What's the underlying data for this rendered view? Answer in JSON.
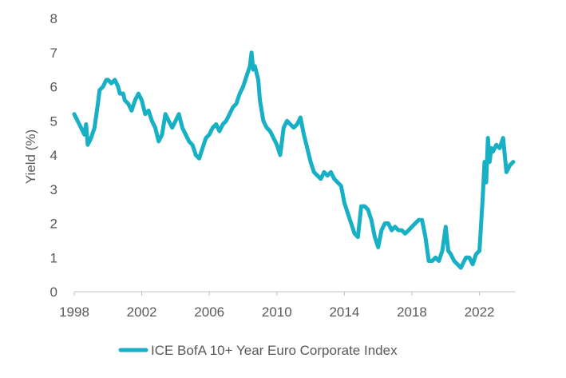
{
  "chart_data": {
    "type": "line",
    "title": "",
    "xlabel": "",
    "ylabel": "Yield (%)",
    "xlim": [
      1998,
      2024.1
    ],
    "ylim": [
      0,
      8
    ],
    "x_ticks": [
      "1998",
      "2002",
      "2006",
      "2010",
      "2014",
      "2018",
      "2022"
    ],
    "y_ticks": [
      "0",
      "1",
      "2",
      "3",
      "4",
      "5",
      "6",
      "7",
      "8"
    ],
    "grid": false,
    "legend_position": "bottom",
    "series": [
      {
        "name": "ICE BofA 10+ Year Euro Corporate Index",
        "color": "#17b0c4",
        "x": [
          1998.0,
          1998.2,
          1998.4,
          1998.6,
          1998.7,
          1998.8,
          1999.0,
          1999.2,
          1999.4,
          1999.5,
          1999.7,
          1999.9,
          2000.0,
          2000.2,
          2000.4,
          2000.6,
          2000.7,
          2000.9,
          2001.0,
          2001.2,
          2001.4,
          2001.6,
          2001.8,
          2002.0,
          2002.2,
          2002.4,
          2002.6,
          2002.8,
          2003.0,
          2003.2,
          2003.4,
          2003.6,
          2003.8,
          2004.0,
          2004.2,
          2004.4,
          2004.6,
          2004.8,
          2005.0,
          2005.2,
          2005.4,
          2005.6,
          2005.8,
          2006.0,
          2006.2,
          2006.4,
          2006.6,
          2006.8,
          2007.0,
          2007.2,
          2007.4,
          2007.6,
          2007.8,
          2008.0,
          2008.2,
          2008.4,
          2008.5,
          2008.6,
          2008.7,
          2008.8,
          2008.9,
          2009.0,
          2009.2,
          2009.4,
          2009.6,
          2009.8,
          2010.0,
          2010.2,
          2010.4,
          2010.6,
          2010.8,
          2011.0,
          2011.2,
          2011.4,
          2011.6,
          2011.8,
          2012.0,
          2012.2,
          2012.4,
          2012.6,
          2012.8,
          2013.0,
          2013.2,
          2013.4,
          2013.6,
          2013.8,
          2014.0,
          2014.2,
          2014.4,
          2014.6,
          2014.8,
          2015.0,
          2015.2,
          2015.4,
          2015.6,
          2015.8,
          2016.0,
          2016.2,
          2016.4,
          2016.6,
          2016.8,
          2017.0,
          2017.2,
          2017.4,
          2017.6,
          2017.8,
          2018.0,
          2018.2,
          2018.4,
          2018.6,
          2018.8,
          2019.0,
          2019.2,
          2019.4,
          2019.6,
          2019.8,
          2020.0,
          2020.15,
          2020.3,
          2020.5,
          2020.7,
          2020.9,
          2021.0,
          2021.2,
          2021.4,
          2021.6,
          2021.8,
          2022.0,
          2022.1,
          2022.2,
          2022.3,
          2022.4,
          2022.5,
          2022.6,
          2022.7,
          2022.8,
          2023.0,
          2023.2,
          2023.4,
          2023.6,
          2023.8,
          2024.0
        ],
        "values": [
          5.2,
          5.0,
          4.8,
          4.6,
          4.9,
          4.3,
          4.5,
          4.8,
          5.5,
          5.9,
          6.0,
          6.2,
          6.2,
          6.1,
          6.2,
          6.0,
          5.8,
          5.8,
          5.6,
          5.5,
          5.3,
          5.6,
          5.8,
          5.6,
          5.2,
          5.3,
          5.0,
          4.8,
          4.4,
          4.6,
          5.2,
          5.0,
          4.8,
          5.0,
          5.2,
          4.8,
          4.6,
          4.4,
          4.3,
          4.0,
          3.9,
          4.2,
          4.5,
          4.6,
          4.8,
          4.9,
          4.7,
          4.9,
          5.0,
          5.2,
          5.4,
          5.5,
          5.8,
          6.0,
          6.3,
          6.6,
          7.0,
          6.5,
          6.6,
          6.4,
          6.2,
          5.6,
          5.0,
          4.8,
          4.7,
          4.5,
          4.3,
          4.0,
          4.8,
          5.0,
          4.9,
          4.8,
          4.9,
          5.1,
          4.6,
          4.2,
          3.8,
          3.5,
          3.4,
          3.3,
          3.5,
          3.4,
          3.5,
          3.3,
          3.2,
          3.1,
          2.6,
          2.3,
          2.0,
          1.7,
          1.6,
          2.5,
          2.5,
          2.4,
          2.1,
          1.6,
          1.3,
          1.8,
          2.0,
          2.0,
          1.8,
          1.9,
          1.8,
          1.8,
          1.7,
          1.8,
          1.9,
          2.0,
          2.1,
          2.1,
          1.6,
          0.9,
          0.9,
          1.0,
          0.9,
          1.2,
          1.9,
          1.2,
          1.1,
          0.9,
          0.8,
          0.7,
          0.8,
          1.0,
          1.0,
          0.8,
          1.1,
          1.2,
          2.0,
          2.8,
          3.8,
          3.2,
          4.5,
          3.8,
          4.2,
          4.1,
          4.3,
          4.2,
          4.5,
          3.5,
          3.7,
          3.8
        ],
        "line_width": 5
      }
    ]
  }
}
